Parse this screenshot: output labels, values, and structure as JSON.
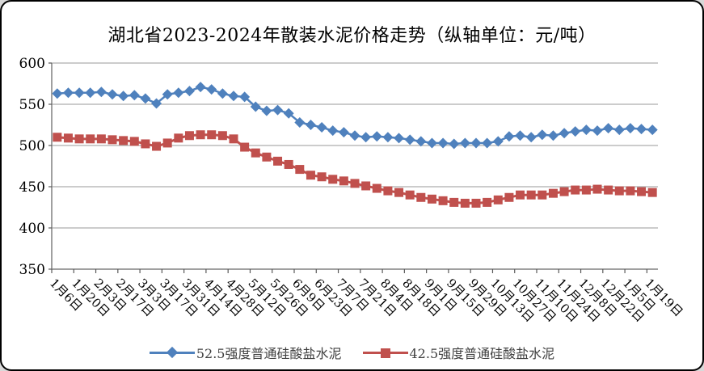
{
  "chart": {
    "title": "湖北省2023-2024年散装水泥价格走势（纵轴单位：元/吨）"
  },
  "chart_data": {
    "type": "line",
    "title": "湖北省2023-2024年散装水泥价格走势（纵轴单位：元/吨）",
    "ylabel_unit": "元/吨",
    "ylim": [
      350,
      600
    ],
    "y_ticks": [
      350,
      400,
      450,
      500,
      550,
      600
    ],
    "grid": true,
    "legend_position": "bottom",
    "x_label_interval": 2,
    "x_tick_labels": [
      "1月6日",
      "1月20日",
      "2月3日",
      "2月17日",
      "3月3日",
      "3月17日",
      "3月31日",
      "4月14日",
      "4月28日",
      "5月12日",
      "5月26日",
      "6月9日",
      "6月23日",
      "7月7日",
      "7月21日",
      "8月4日",
      "8月18日",
      "9月1日",
      "9月15日",
      "9月29日",
      "10月13日",
      "10月27日",
      "11月10日",
      "11月24日",
      "12月8日",
      "12月22日",
      "1月5日",
      "1月19日"
    ],
    "series": [
      {
        "name": "52.5强度普通硅酸盐水泥",
        "color": "#4F81BD",
        "marker": "diamond",
        "values": [
          563,
          564,
          564,
          564,
          565,
          562,
          560,
          561,
          557,
          551,
          562,
          564,
          566,
          571,
          568,
          563,
          560,
          559,
          547,
          542,
          543,
          539,
          528,
          525,
          522,
          518,
          516,
          512,
          510,
          511,
          510,
          509,
          507,
          505,
          503,
          503,
          502,
          503,
          503,
          503,
          505,
          511,
          512,
          510,
          513,
          512,
          515,
          517,
          519,
          518,
          521,
          519,
          521,
          520,
          519
        ]
      },
      {
        "name": "42.5强度普通硅酸盐水泥",
        "color": "#C0504D",
        "marker": "square",
        "values": [
          510,
          509,
          508,
          508,
          508,
          507,
          506,
          505,
          502,
          499,
          503,
          509,
          512,
          513,
          513,
          512,
          508,
          498,
          491,
          486,
          481,
          477,
          471,
          464,
          462,
          459,
          457,
          454,
          451,
          448,
          445,
          443,
          440,
          437,
          435,
          433,
          431,
          430,
          430,
          431,
          434,
          437,
          440,
          440,
          440,
          442,
          444,
          446,
          446,
          447,
          446,
          445,
          445,
          444,
          443
        ]
      }
    ],
    "colors": {
      "gridline": "#9a9a9a",
      "axis": "#808080",
      "tick": "#595959",
      "text": "#000000"
    }
  }
}
